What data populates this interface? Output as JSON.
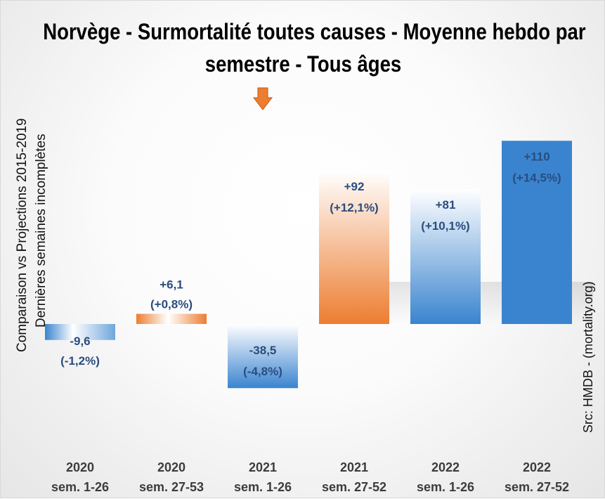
{
  "title_line_1": "Norvège - Surmortalité toutes causes - Moyenne hebdo par",
  "title_line_2": "semestre - Tous âges",
  "ylabel_line_1": "Comparaison vs Projections 2015-2019",
  "ylabel_line_2": "Dernières semaines incomplètes",
  "source": "Src: HMDB - (mortality.org)",
  "icon": "arrow-down-icon",
  "colors": {
    "orange": "#ed7d31",
    "blue": "#3a84cf",
    "label": "#2b4c7e"
  },
  "chart_data": {
    "type": "bar",
    "title": "Norvège - Surmortalité toutes causes - Moyenne hebdo par semestre - Tous âges",
    "ylabel": "Comparaison vs Projections 2015-2019",
    "categories": [
      {
        "year": "2020",
        "sem": "sem. 1-26"
      },
      {
        "year": "2020",
        "sem": "sem. 27-53"
      },
      {
        "year": "2021",
        "sem": "sem. 1-26"
      },
      {
        "year": "2021",
        "sem": "sem. 27-52"
      },
      {
        "year": "2022",
        "sem": "sem. 1-26"
      },
      {
        "year": "2022",
        "sem": "sem. 27-52"
      }
    ],
    "values": [
      -9.6,
      6.1,
      -38.5,
      92,
      81,
      110
    ],
    "value_labels": [
      "-9,6",
      "+6,1",
      "-38,5",
      "+92",
      "+81",
      "+110"
    ],
    "pct_labels": [
      "(-1,2%)",
      "(+0,8%)",
      "(-4,8%)",
      "(+12,1%)",
      "(+10,1%)",
      "(+14,5%)"
    ],
    "bar_colors": [
      "blue",
      "orange",
      "blue",
      "orange",
      "blue",
      "blue"
    ],
    "bar_styles": [
      "fade-left",
      "fade-center",
      "fade-top",
      "fade-top",
      "fade-top",
      "solid"
    ],
    "arrow_index": 2
  }
}
